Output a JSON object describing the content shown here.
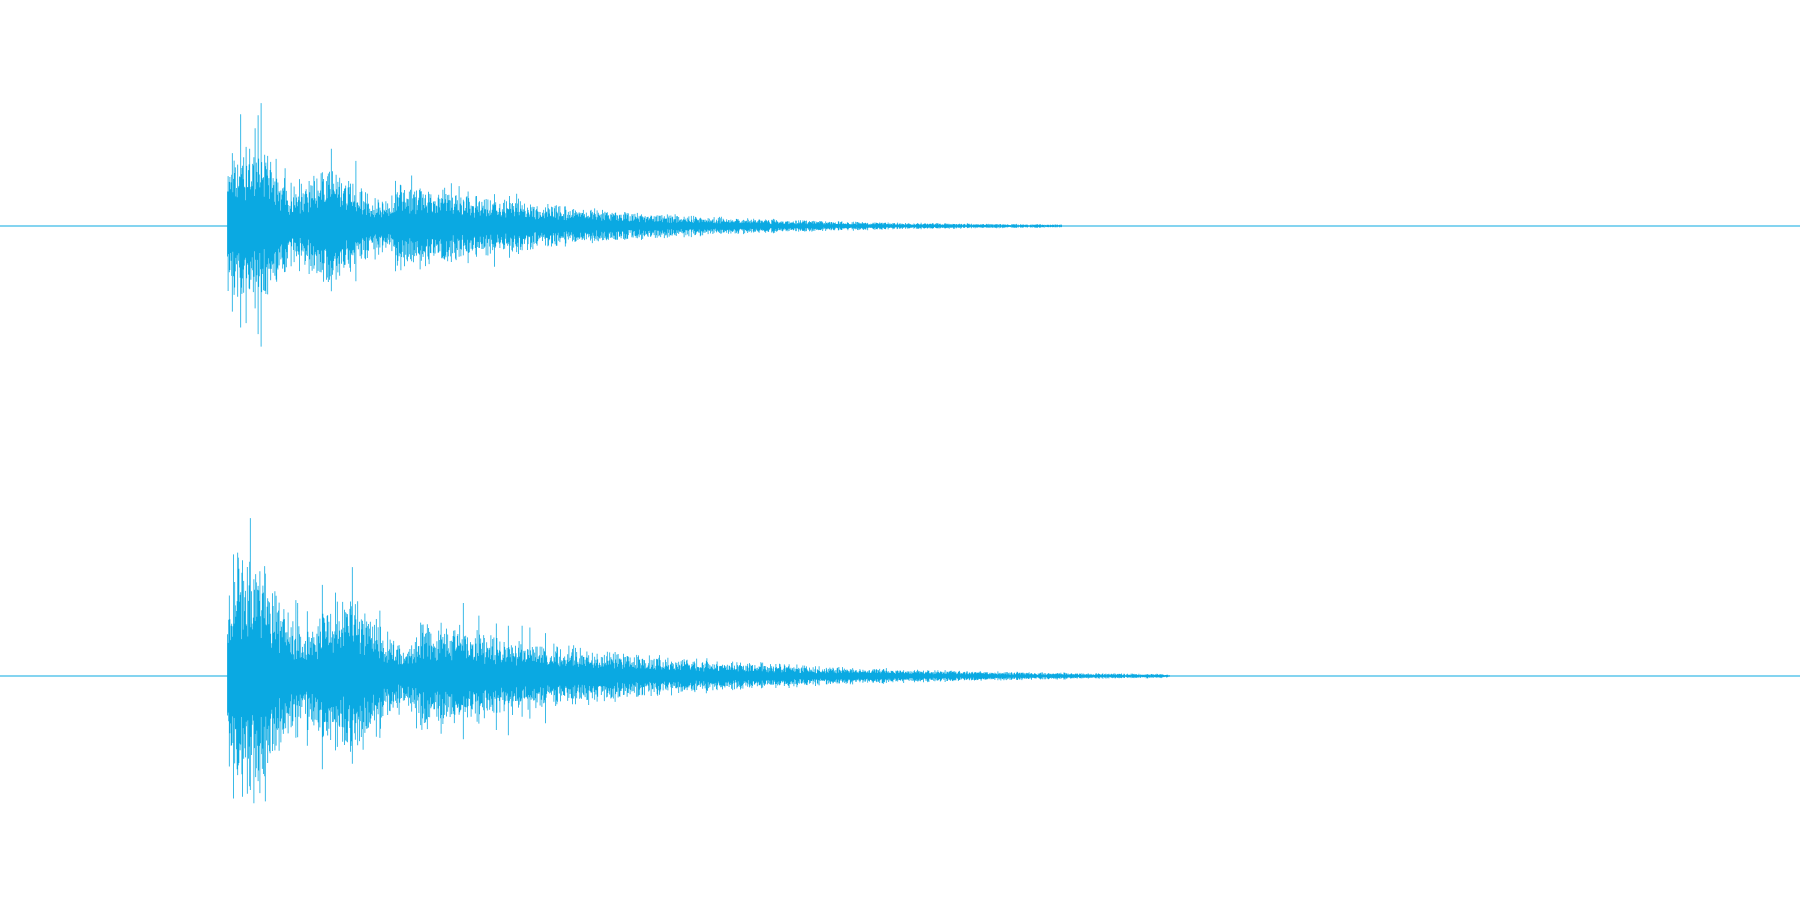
{
  "waveform": {
    "color": "#0aa9e2",
    "background": "#ffffff",
    "channels": [
      {
        "name": "",
        "onset_fraction": 0.1264,
        "peak_amplitude": 0.43,
        "decay_end_fraction": 0.59,
        "seed": 11
      },
      {
        "name": "",
        "onset_fraction": 0.1264,
        "peak_amplitude": 0.56,
        "decay_end_fraction": 0.65,
        "seed": 37
      }
    ]
  }
}
